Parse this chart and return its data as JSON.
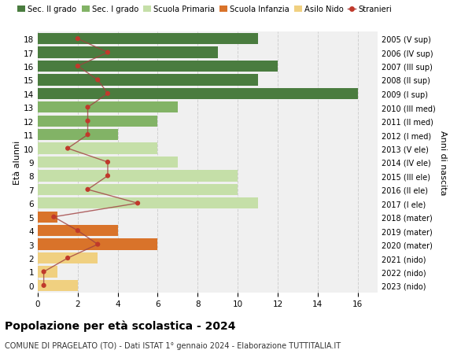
{
  "ages": [
    18,
    17,
    16,
    15,
    14,
    13,
    12,
    11,
    10,
    9,
    8,
    7,
    6,
    5,
    4,
    3,
    2,
    1,
    0
  ],
  "anni_nascita": [
    "2005 (V sup)",
    "2006 (IV sup)",
    "2007 (III sup)",
    "2008 (II sup)",
    "2009 (I sup)",
    "2010 (III med)",
    "2011 (II med)",
    "2012 (I med)",
    "2013 (V ele)",
    "2014 (IV ele)",
    "2015 (III ele)",
    "2016 (II ele)",
    "2017 (I ele)",
    "2018 (mater)",
    "2019 (mater)",
    "2020 (mater)",
    "2021 (nido)",
    "2022 (nido)",
    "2023 (nido)"
  ],
  "bar_values": [
    11,
    9,
    12,
    11,
    16,
    7,
    6,
    4,
    6,
    7,
    10,
    10,
    11,
    1,
    4,
    6,
    3,
    1,
    2
  ],
  "bar_colors": [
    "#4a7c3f",
    "#4a7c3f",
    "#4a7c3f",
    "#4a7c3f",
    "#4a7c3f",
    "#82b366",
    "#82b366",
    "#82b366",
    "#c5dfa8",
    "#c5dfa8",
    "#c5dfa8",
    "#c5dfa8",
    "#c5dfa8",
    "#d9732a",
    "#d9732a",
    "#d9732a",
    "#f0d080",
    "#f0d080",
    "#f0d080"
  ],
  "stranieri_values": [
    2.0,
    3.5,
    2.0,
    3.0,
    3.5,
    2.5,
    2.5,
    2.5,
    1.5,
    3.5,
    3.5,
    2.5,
    5.0,
    0.8,
    2.0,
    3.0,
    1.5,
    0.3,
    0.3
  ],
  "legend_labels": [
    "Sec. II grado",
    "Sec. I grado",
    "Scuola Primaria",
    "Scuola Infanzia",
    "Asilo Nido",
    "Stranieri"
  ],
  "legend_colors": [
    "#4a7c3f",
    "#82b366",
    "#c5dfa8",
    "#d9732a",
    "#f0d080",
    "#c0392b"
  ],
  "ylabel_left": "Età alunni",
  "ylabel_right": "Anni di nascita",
  "title": "Popolazione per età scolastica - 2024",
  "subtitle": "COMUNE DI PRAGELATO (TO) - Dati ISTAT 1° gennaio 2024 - Elaborazione TUTTITALIA.IT",
  "xlim": [
    0,
    17
  ],
  "xticks": [
    0,
    2,
    4,
    6,
    8,
    10,
    12,
    14,
    16
  ],
  "background_color": "#ffffff",
  "grid_color": "#d0d0d0",
  "stranieri_line_color": "#a04040",
  "stranieri_dot_color": "#c0392b",
  "bar_height": 0.82
}
